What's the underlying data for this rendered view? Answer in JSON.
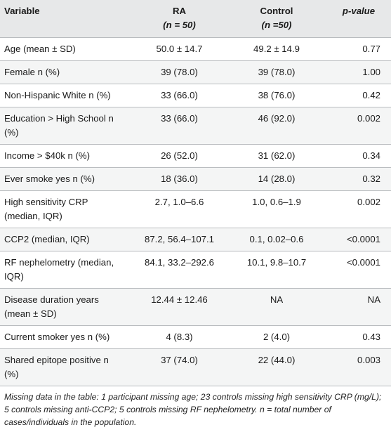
{
  "header": {
    "variable": "Variable",
    "ra_label": "RA",
    "ra_n": "(n = 50)",
    "control_label": "Control",
    "control_n": "(n =50)",
    "pvalue_label": "p-value"
  },
  "rows": [
    {
      "label": "Age (mean ± SD)",
      "ra": "50.0 ± 14.7",
      "control": "49.2 ± 14.9",
      "p": "0.77"
    },
    {
      "label": "Female n (%)",
      "ra": "39 (78.0)",
      "control": "39 (78.0)",
      "p": "1.00"
    },
    {
      "label": "Non-Hispanic White n (%)",
      "ra": "33 (66.0)",
      "control": "38 (76.0)",
      "p": "0.42"
    },
    {
      "label": "Education > High School n (%)",
      "ra": "33 (66.0)",
      "control": "46 (92.0)",
      "p": "0.002"
    },
    {
      "label": "Income > $40k n (%)",
      "ra": "26 (52.0)",
      "control": "31 (62.0)",
      "p": "0.34"
    },
    {
      "label": "Ever smoke yes n (%)",
      "ra": "18 (36.0)",
      "control": "14 (28.0)",
      "p": "0.32"
    },
    {
      "label": "High sensitivity CRP (median, IQR)",
      "ra": "2.7, 1.0–6.6",
      "control": "1.0, 0.6–1.9",
      "p": "0.002"
    },
    {
      "label": "CCP2 (median, IQR)",
      "ra": "87.2, 56.4–107.1",
      "control": "0.1, 0.02–0.6",
      "p": "<0.0001"
    },
    {
      "label": "RF nephelometry (median, IQR)",
      "ra": "84.1, 33.2–292.6",
      "control": "10.1, 9.8–10.7",
      "p": "<0.0001"
    },
    {
      "label": "Disease duration years (mean ± SD)",
      "ra": "12.44 ± 12.46",
      "control": "NA",
      "p": "NA"
    },
    {
      "label": "Current smoker yes n (%)",
      "ra": "4 (8.3)",
      "control": "2 (4.0)",
      "p": "0.43"
    },
    {
      "label": "Shared epitope positive n (%)",
      "ra": "37 (74.0)",
      "control": "22 (44.0)",
      "p": "0.003"
    }
  ],
  "footnote": "Missing data in the table: 1 participant missing age; 23 controls missing high sensitivity CRP (mg/L); 5 controls missing anti-CCP2; 5 controls missing RF nephelometry. n = total number of cases/individuals in the population."
}
